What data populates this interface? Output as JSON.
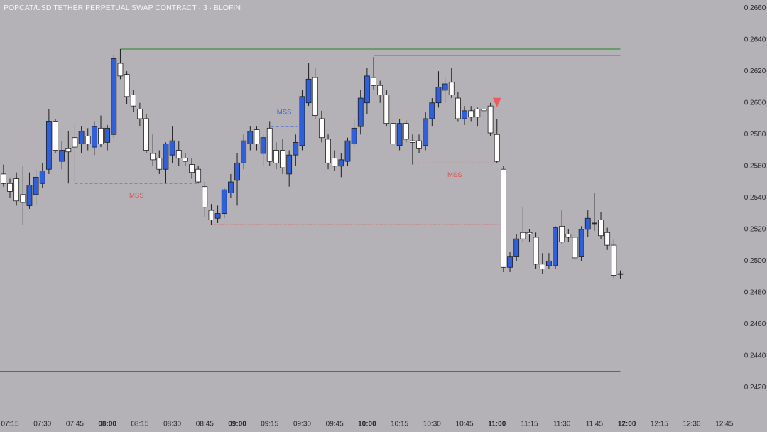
{
  "chart_data": {
    "type": "candlestick",
    "title": "POPCAT/USD TETHER PERPETUAL SWAP CONTRACT · 3 · BLOFIN",
    "x": [
      432,
      435,
      438,
      441,
      444,
      447,
      450,
      453,
      456,
      459,
      462,
      465,
      468,
      471,
      474,
      477,
      480,
      483,
      486,
      489,
      492,
      495,
      498,
      501,
      504,
      507,
      510,
      513,
      516,
      519,
      522,
      525,
      528,
      531,
      534,
      537,
      540,
      543,
      546,
      549,
      552,
      555,
      558,
      561,
      564,
      567,
      570,
      573,
      576,
      579,
      582,
      585,
      588,
      591,
      594,
      597,
      600,
      603,
      606,
      609,
      612,
      615,
      618,
      621,
      624,
      627,
      630,
      633,
      636,
      639,
      642,
      645,
      648,
      651,
      654,
      657,
      660,
      663,
      666,
      669,
      672,
      675,
      678,
      681,
      684,
      687,
      690,
      693,
      696,
      699,
      702,
      705,
      708,
      711,
      714,
      717
    ],
    "open": [
      0.2555,
      0.2549,
      0.2552,
      0.2542,
      0.2535,
      0.2542,
      0.2549,
      0.2558,
      0.2588,
      0.2563,
      0.2571,
      0.2578,
      0.2574,
      0.2579,
      0.2572,
      0.2584,
      0.2575,
      0.258,
      0.2625,
      0.2618,
      0.2605,
      0.2596,
      0.259,
      0.2568,
      0.2565,
      0.2558,
      0.2567,
      0.257,
      0.2565,
      0.2561,
      0.2558,
      0.2547,
      0.2532,
      0.2527,
      0.253,
      0.2543,
      0.2551,
      0.2562,
      0.2574,
      0.2583,
      0.2568,
      0.2584,
      0.257,
      0.257,
      0.2555,
      0.2567,
      0.2573,
      0.26,
      0.2616,
      0.259,
      0.2577,
      0.2565,
      0.256,
      0.2563,
      0.2574,
      0.2585,
      0.26,
      0.2616,
      0.2611,
      0.2605,
      0.2587,
      0.2573,
      0.2587,
      0.2576,
      0.2576,
      0.2573,
      0.259,
      0.26,
      0.2608,
      0.2613,
      0.2603,
      0.259,
      0.2595,
      0.2596,
      0.2596,
      0.2598,
      0.258,
      0.2558,
      0.2496,
      0.2503,
      0.2518,
      0.2518,
      0.2515,
      0.2498,
      0.2497,
      0.2497,
      0.2522,
      0.2517,
      0.2515,
      0.2503,
      0.252,
      0.2524,
      0.2526,
      0.2518,
      0.251,
      0.2492
    ],
    "high": [
      0.2561,
      0.2552,
      0.2556,
      0.256,
      0.2556,
      0.2558,
      0.2562,
      0.2596,
      0.259,
      0.2576,
      0.2582,
      0.2587,
      0.2585,
      0.2584,
      0.2588,
      0.2592,
      0.2586,
      0.263,
      0.2634,
      0.262,
      0.2608,
      0.26,
      0.2593,
      0.258,
      0.257,
      0.2575,
      0.2585,
      0.2576,
      0.2568,
      0.2565,
      0.256,
      0.255,
      0.2536,
      0.2535,
      0.2546,
      0.2555,
      0.2568,
      0.258,
      0.2585,
      0.2585,
      0.258,
      0.2588,
      0.2575,
      0.2577,
      0.257,
      0.258,
      0.2608,
      0.2625,
      0.2622,
      0.2595,
      0.258,
      0.257,
      0.2568,
      0.2578,
      0.259,
      0.2608,
      0.2622,
      0.2629,
      0.2614,
      0.2608,
      0.259,
      0.259,
      0.2589,
      0.258,
      0.258,
      0.2594,
      0.2603,
      0.262,
      0.2616,
      0.2622,
      0.2607,
      0.2598,
      0.2598,
      0.2597,
      0.2598,
      0.26,
      0.259,
      0.256,
      0.2506,
      0.2517,
      0.2534,
      0.252,
      0.2518,
      0.2505,
      0.2505,
      0.2522,
      0.2532,
      0.252,
      0.2517,
      0.2522,
      0.2532,
      0.2543,
      0.2531,
      0.2521,
      0.2514,
      0.2494
    ],
    "low": [
      0.2547,
      0.254,
      0.2535,
      0.2523,
      0.2533,
      0.2535,
      0.2546,
      0.2555,
      0.2568,
      0.2558,
      0.2549,
      0.2549,
      0.2568,
      0.257,
      0.2567,
      0.2572,
      0.257,
      0.2578,
      0.2615,
      0.2599,
      0.2594,
      0.2585,
      0.2568,
      0.256,
      0.2555,
      0.2549,
      0.2562,
      0.256,
      0.256,
      0.2552,
      0.2549,
      0.2528,
      0.2523,
      0.2524,
      0.2527,
      0.254,
      0.2535,
      0.2558,
      0.257,
      0.257,
      0.256,
      0.256,
      0.2558,
      0.2555,
      0.2547,
      0.256,
      0.257,
      0.2598,
      0.259,
      0.2575,
      0.2558,
      0.2557,
      0.2553,
      0.256,
      0.2572,
      0.258,
      0.2593,
      0.2608,
      0.26,
      0.2585,
      0.2572,
      0.257,
      0.2575,
      0.2561,
      0.2568,
      0.257,
      0.2585,
      0.2597,
      0.26,
      0.2603,
      0.2588,
      0.2586,
      0.2588,
      0.2585,
      0.2589,
      0.2579,
      0.2562,
      0.2493,
      0.2493,
      0.25,
      0.2512,
      0.2512,
      0.2495,
      0.2492,
      0.2495,
      0.2495,
      0.2511,
      0.2512,
      0.25,
      0.25,
      0.2515,
      0.2519,
      0.2514,
      0.2507,
      0.2489,
      0.2489
    ],
    "close": [
      0.2549,
      0.2544,
      0.2538,
      0.2537,
      0.2548,
      0.2553,
      0.2557,
      0.2588,
      0.257,
      0.257,
      0.2569,
      0.2572,
      0.2582,
      0.2574,
      0.2585,
      0.2574,
      0.2584,
      0.2628,
      0.2617,
      0.2604,
      0.2598,
      0.259,
      0.257,
      0.2564,
      0.2558,
      0.2574,
      0.2576,
      0.2565,
      0.2563,
      0.2556,
      0.255,
      0.2534,
      0.2526,
      0.253,
      0.2545,
      0.255,
      0.2562,
      0.2576,
      0.2582,
      0.2574,
      0.2578,
      0.2563,
      0.2562,
      0.2559,
      0.2567,
      0.2575,
      0.2604,
      0.2615,
      0.2592,
      0.2578,
      0.2562,
      0.256,
      0.2564,
      0.2576,
      0.2584,
      0.2603,
      0.2617,
      0.2611,
      0.2605,
      0.2587,
      0.2574,
      0.2587,
      0.2577,
      0.2575,
      0.2571,
      0.259,
      0.26,
      0.261,
      0.2612,
      0.2605,
      0.259,
      0.2595,
      0.2591,
      0.2591,
      0.2595,
      0.2581,
      0.2563,
      0.2496,
      0.2503,
      0.2514,
      0.2514,
      0.2517,
      0.2498,
      0.2495,
      0.25,
      0.2521,
      0.2512,
      0.2515,
      0.2502,
      0.252,
      0.2527,
      0.2524,
      0.2516,
      0.251,
      0.2491,
      0.2492
    ],
    "up_color": "#2f5fd9",
    "down_color": "#ffffff",
    "wick_color": "#1e1e1e",
    "xlim": [
      430.4,
      770
    ],
    "ylim": [
      0.24,
      0.2665
    ],
    "xticks": [
      {
        "value": 435,
        "label": "07:15"
      },
      {
        "value": 450,
        "label": "07:30"
      },
      {
        "value": 465,
        "label": "07:45"
      },
      {
        "value": 480,
        "label": "08:00"
      },
      {
        "value": 495,
        "label": "08:15"
      },
      {
        "value": 510,
        "label": "08:30"
      },
      {
        "value": 525,
        "label": "08:45"
      },
      {
        "value": 540,
        "label": "09:00"
      },
      {
        "value": 555,
        "label": "09:15"
      },
      {
        "value": 570,
        "label": "09:30"
      },
      {
        "value": 585,
        "label": "09:45"
      },
      {
        "value": 600,
        "label": "10:00"
      },
      {
        "value": 615,
        "label": "10:15"
      },
      {
        "value": 630,
        "label": "10:30"
      },
      {
        "value": 645,
        "label": "10:45"
      },
      {
        "value": 660,
        "label": "11:00"
      },
      {
        "value": 675,
        "label": "11:15"
      },
      {
        "value": 690,
        "label": "11:30"
      },
      {
        "value": 705,
        "label": "11:45"
      },
      {
        "value": 720,
        "label": "12:00"
      },
      {
        "value": 735,
        "label": "12:15"
      },
      {
        "value": 750,
        "label": "12:30"
      },
      {
        "value": 765,
        "label": "12:45"
      }
    ],
    "yticks": [
      {
        "value": 0.242,
        "label": "0.2420"
      },
      {
        "value": 0.244,
        "label": "0.2440"
      },
      {
        "value": 0.246,
        "label": "0.2460"
      },
      {
        "value": 0.248,
        "label": "0.2480"
      },
      {
        "value": 0.25,
        "label": "0.2500"
      },
      {
        "value": 0.252,
        "label": "0.2520"
      },
      {
        "value": 0.254,
        "label": "0.2540"
      },
      {
        "value": 0.256,
        "label": "0.2560"
      },
      {
        "value": 0.258,
        "label": "0.2580"
      },
      {
        "value": 0.26,
        "label": "0.2600"
      },
      {
        "value": 0.262,
        "label": "0.2620"
      },
      {
        "value": 0.264,
        "label": "0.2640"
      },
      {
        "value": 0.266,
        "label": "0.2660"
      }
    ],
    "levels": [
      {
        "value": 0.2634,
        "from": 486,
        "to": 717,
        "color": "#3f8f45",
        "style": "solid"
      },
      {
        "value": 0.263,
        "from": 603,
        "to": 717,
        "color": "#3f8f45",
        "style": "solid"
      },
      {
        "value": 0.24303,
        "to": 717,
        "color": "#e0302a",
        "style": "solid"
      },
      {
        "value": 0.2549,
        "from": 465,
        "to": 522,
        "color": "#e05050",
        "style": "dashed",
        "label": "MSS",
        "label_position": "below"
      },
      {
        "value": 0.2585,
        "from": 555.6,
        "to": 567.7,
        "color": "#3c64d8",
        "style": "dashed",
        "label": "MSS",
        "label_position": "above"
      },
      {
        "value": 0.2562,
        "from": 621,
        "to": 660,
        "color": "#e05050",
        "style": "dashed",
        "label": "MSS",
        "label_position": "below"
      },
      {
        "value": 0.2523,
        "from": 528,
        "to": 661.5,
        "color": "#e05050",
        "style": "dotted"
      }
    ],
    "markers": [
      {
        "x": 660,
        "y": 0.26,
        "color": "#f05a5a",
        "shape": "triangle-down"
      }
    ]
  }
}
